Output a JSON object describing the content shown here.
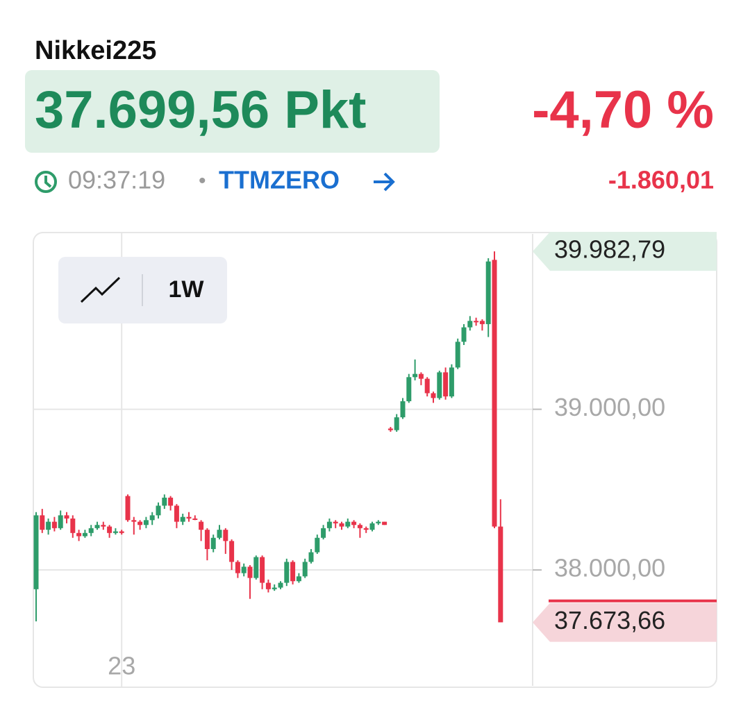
{
  "header": {
    "name": "Nikkei225",
    "price": "37.699,56 Pkt",
    "change_pct": "-4,70 %",
    "time": "09:37:19",
    "source": "TTMZERO",
    "change_abs": "-1.860,01",
    "range_button": "1W"
  },
  "chart_data": {
    "type": "candlestick",
    "up_color": "#2e9c6a",
    "down_color": "#e8334a",
    "ylim": [
      37270,
      40100
    ],
    "yticks": [
      {
        "value": 38000,
        "label": "38.000,00"
      },
      {
        "value": 39000,
        "label": "39.000,00"
      }
    ],
    "categories": [
      null,
      null,
      null,
      null,
      null,
      null,
      null,
      null,
      null,
      null,
      null,
      null,
      null,
      null,
      "23",
      null,
      null,
      null,
      null,
      null,
      null,
      null,
      null,
      null,
      null,
      null,
      null,
      null,
      null,
      null,
      null,
      null,
      null,
      null,
      null,
      null,
      null,
      null,
      null,
      null,
      null,
      null,
      null,
      null,
      null,
      null,
      null,
      null,
      null,
      null,
      null,
      null,
      null,
      null,
      null,
      null,
      null,
      null,
      null,
      null,
      null,
      null,
      null,
      null,
      null,
      null,
      null,
      null,
      null,
      null,
      null,
      null,
      null,
      null,
      null,
      null,
      null
    ],
    "ohlc": [
      [
        37880,
        38360,
        37680,
        38340
      ],
      [
        38340,
        38380,
        38230,
        38250
      ],
      [
        38250,
        38320,
        38220,
        38300
      ],
      [
        38300,
        38330,
        38240,
        38260
      ],
      [
        38260,
        38370,
        38250,
        38340
      ],
      [
        38340,
        38360,
        38290,
        38320
      ],
      [
        38320,
        38340,
        38200,
        38230
      ],
      [
        38230,
        38250,
        38180,
        38210
      ],
      [
        38210,
        38250,
        38200,
        38230
      ],
      [
        38230,
        38280,
        38210,
        38260
      ],
      [
        38260,
        38300,
        38250,
        38280
      ],
      [
        38280,
        38300,
        38250,
        38270
      ],
      [
        38270,
        38280,
        38200,
        38230
      ],
      [
        38230,
        38260,
        38220,
        38240
      ],
      [
        38240,
        38250,
        38220,
        38230
      ],
      [
        38460,
        38470,
        38300,
        38310
      ],
      [
        38310,
        38330,
        38220,
        38300
      ],
      [
        38300,
        38310,
        38250,
        38280
      ],
      [
        38280,
        38330,
        38260,
        38310
      ],
      [
        38310,
        38360,
        38280,
        38340
      ],
      [
        38340,
        38420,
        38320,
        38400
      ],
      [
        38400,
        38470,
        38380,
        38450
      ],
      [
        38450,
        38460,
        38370,
        38400
      ],
      [
        38400,
        38410,
        38260,
        38300
      ],
      [
        38300,
        38350,
        38280,
        38330
      ],
      [
        38330,
        38360,
        38300,
        38320
      ],
      [
        38320,
        38340,
        38310,
        38320
      ],
      [
        38300,
        38310,
        38180,
        38250
      ],
      [
        38250,
        38260,
        38060,
        38130
      ],
      [
        38130,
        38220,
        38110,
        38200
      ],
      [
        38200,
        38280,
        38190,
        38250
      ],
      [
        38250,
        38260,
        38100,
        38180
      ],
      [
        38180,
        38190,
        38000,
        38050
      ],
      [
        38050,
        38060,
        37950,
        37980
      ],
      [
        37980,
        38040,
        37960,
        38020
      ],
      [
        38020,
        38030,
        37820,
        37950
      ],
      [
        37950,
        38090,
        37940,
        38080
      ],
      [
        38080,
        38090,
        37880,
        37920
      ],
      [
        37920,
        37940,
        37860,
        37880
      ],
      [
        37880,
        37910,
        37870,
        37890
      ],
      [
        37890,
        37930,
        37880,
        37920
      ],
      [
        37920,
        38070,
        37900,
        38050
      ],
      [
        38050,
        38060,
        37910,
        37930
      ],
      [
        37930,
        37980,
        37920,
        37960
      ],
      [
        37960,
        38070,
        37950,
        38050
      ],
      [
        38050,
        38130,
        38040,
        38110
      ],
      [
        38110,
        38220,
        38100,
        38200
      ],
      [
        38200,
        38280,
        38190,
        38260
      ],
      [
        38260,
        38320,
        38240,
        38300
      ],
      [
        38300,
        38310,
        38260,
        38290
      ],
      [
        38290,
        38300,
        38250,
        38270
      ],
      [
        38270,
        38320,
        38260,
        38300
      ],
      [
        38300,
        38310,
        38260,
        38280
      ],
      [
        38280,
        38290,
        38200,
        38260
      ],
      [
        38260,
        38270,
        38230,
        38250
      ],
      [
        38250,
        38300,
        38240,
        38290
      ],
      [
        38290,
        38310,
        38280,
        38300
      ],
      [
        38300,
        38300,
        38280,
        38280
      ],
      [
        38880,
        38890,
        38860,
        38870
      ],
      [
        38870,
        38970,
        38860,
        38950
      ],
      [
        38950,
        39070,
        38940,
        39050
      ],
      [
        39050,
        39220,
        39040,
        39200
      ],
      [
        39200,
        39310,
        39180,
        39220
      ],
      [
        39220,
        39230,
        39150,
        39190
      ],
      [
        39190,
        39200,
        39080,
        39100
      ],
      [
        39100,
        39110,
        39040,
        39070
      ],
      [
        39070,
        39240,
        39060,
        39230
      ],
      [
        39230,
        39260,
        39060,
        39080
      ],
      [
        39080,
        39280,
        39070,
        39260
      ],
      [
        39260,
        39440,
        39250,
        39420
      ],
      [
        39420,
        39530,
        39400,
        39510
      ],
      [
        39510,
        39580,
        39490,
        39550
      ],
      [
        39550,
        39570,
        39520,
        39550
      ],
      [
        39550,
        39560,
        39490,
        39530
      ],
      [
        39530,
        39940,
        39450,
        39920
      ],
      [
        39930,
        39983,
        38260,
        38270
      ],
      [
        38270,
        38440,
        37674,
        37674
      ]
    ],
    "markers": [
      {
        "value": 39982.79,
        "label": "39.982,79",
        "color": "#dff0e6"
      },
      {
        "value": 37673.66,
        "label": "37.673,66",
        "color": "#f6d5da"
      }
    ]
  }
}
